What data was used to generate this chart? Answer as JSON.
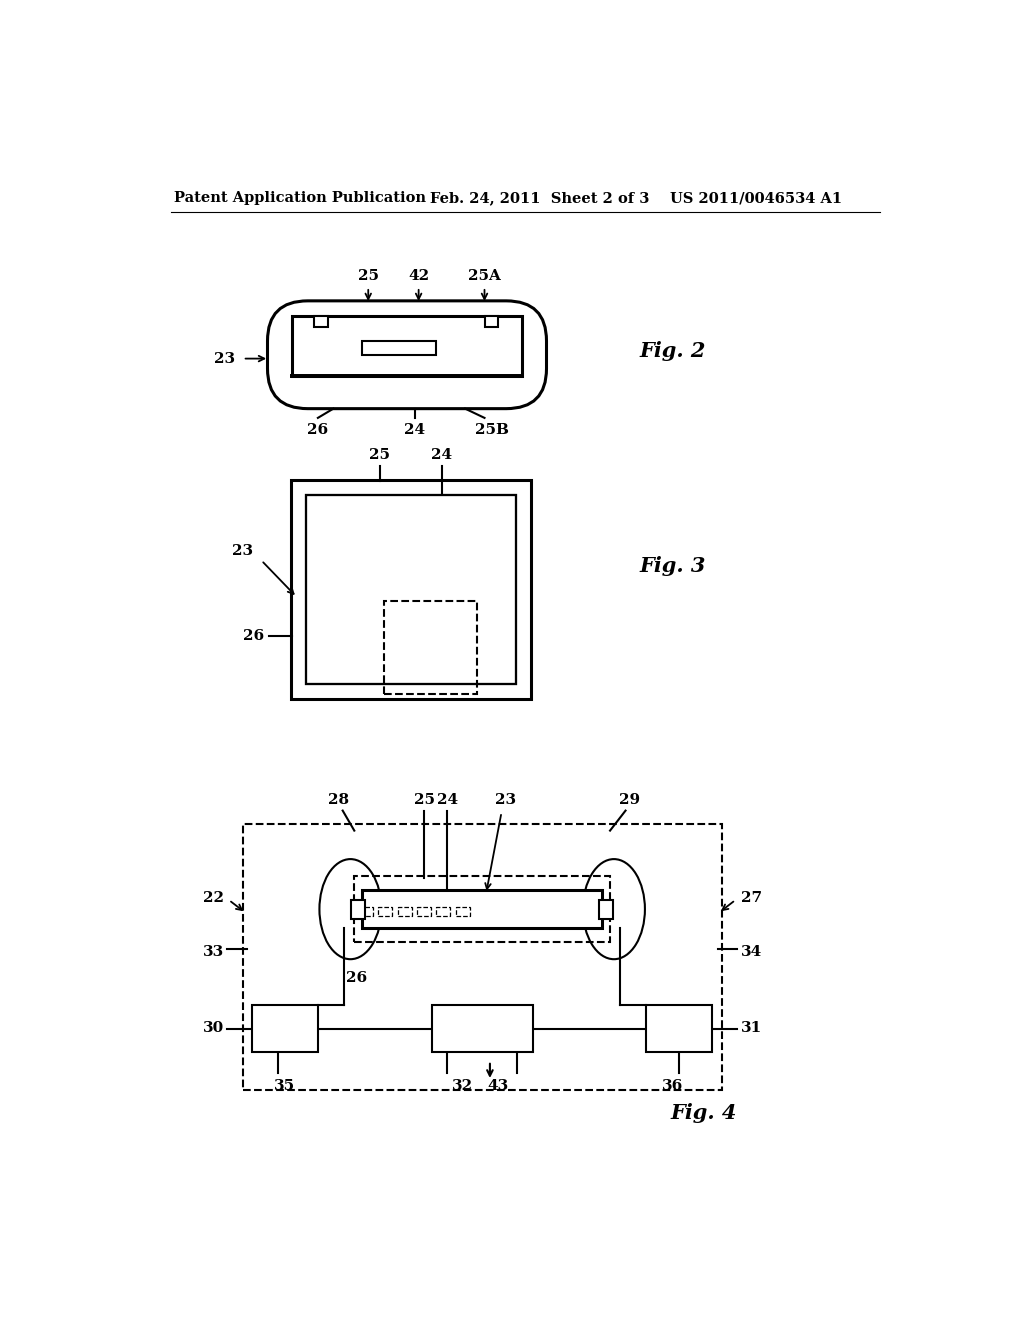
{
  "background_color": "#ffffff",
  "header_left": "Patent Application Publication",
  "header_center": "Feb. 24, 2011  Sheet 2 of 3",
  "header_right": "US 2011/0046534 A1",
  "fig2_label": "Fig. 2",
  "fig3_label": "Fig. 3",
  "fig4_label": "Fig. 4",
  "line_color": "#000000",
  "lw": 1.5,
  "tlw": 2.2
}
